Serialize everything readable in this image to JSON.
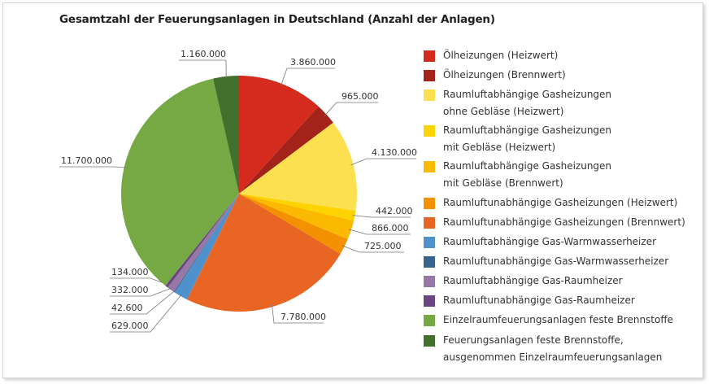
{
  "chart_data": {
    "type": "pie",
    "title": "Gesamtzahl der Feuerungsanlagen in Deutschland (Anzahl der Anlagen)",
    "legend_position": "right",
    "start": "top, clockwise",
    "slices": [
      {
        "name": [
          "Ölheizungen (Heizwert)"
        ],
        "value": 3860000,
        "label": "3.860.000",
        "color": "#d52b1e"
      },
      {
        "name": [
          "Ölheizungen (Brennwert)"
        ],
        "value": 965000,
        "label": "965.000",
        "color": "#a3231a"
      },
      {
        "name": [
          "Raumluftabhängige Gasheizungen",
          "ohne Gebläse (Heizwert)"
        ],
        "value": 4130000,
        "label": "4.130.000",
        "color": "#fde050"
      },
      {
        "name": [
          "Raumluftabhängige Gasheizungen",
          "mit Gebläse (Heizwert)"
        ],
        "value": 442000,
        "label": "442.000",
        "color": "#fdd400"
      },
      {
        "name": [
          "Raumluftabhängige Gasheizungen",
          "mit Gebläse (Brennwert)"
        ],
        "value": 866000,
        "label": "866.000",
        "color": "#fbb900"
      },
      {
        "name": [
          "Raumluftunabhängige Gasheizungen  (Heizwert)"
        ],
        "value": 725000,
        "label": "725.000",
        "color": "#f39100"
      },
      {
        "name": [
          "Raumluftunabhängige Gasheizungen  (Brennwert)"
        ],
        "value": 7780000,
        "label": "7.780.000",
        "color": "#e96524"
      },
      {
        "name": [
          "Raumluftabhängige Gas-Warmwasserheizer"
        ],
        "value": 629000,
        "label": "629.000",
        "color": "#4f91cd"
      },
      {
        "name": [
          "Raumluftunabhängige Gas-Warmwasserheizer"
        ],
        "value": 42600,
        "label": "42.600",
        "color": "#37648f"
      },
      {
        "name": [
          "Raumluftabhängige Gas-Raumheizer"
        ],
        "value": 332000,
        "label": "332.000",
        "color": "#9677a6"
      },
      {
        "name": [
          "Raumluftunabhängige Gas-Raumheizer"
        ],
        "value": 134000,
        "label": "134.000",
        "color": "#6b4580"
      },
      {
        "name": [
          "Einzelraumfeuerungsanlagen feste Brennstoffe"
        ],
        "value": 11700000,
        "label": "11.700.000",
        "color": "#76a944"
      },
      {
        "name": [
          "Feuerungsanlagen feste Brennstoffe,",
          "ausgenommen Einzelraumfeuerungsanlagen"
        ],
        "value": 1160000,
        "label": "1.160.000",
        "color": "#44702e"
      }
    ]
  }
}
